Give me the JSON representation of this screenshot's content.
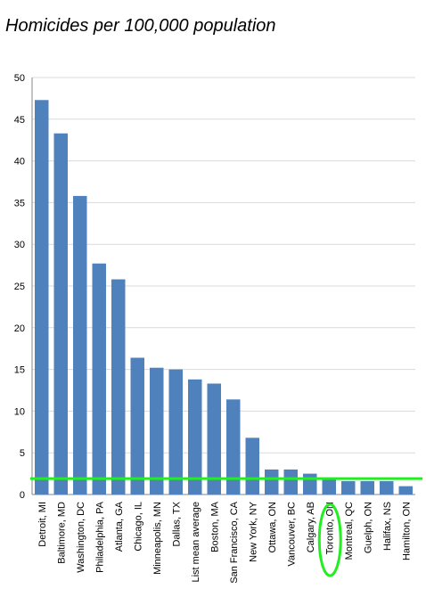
{
  "chart_data": {
    "type": "bar",
    "title": "Homicides per 100,000 population",
    "xlabel": "",
    "ylabel": "",
    "ylim": [
      0,
      50
    ],
    "yticks": [
      0,
      5,
      10,
      15,
      20,
      25,
      30,
      35,
      40,
      45,
      50
    ],
    "grid": true,
    "categories": [
      "Detroit, MI",
      "Baltimore, MD",
      "Washington, DC",
      "Philadelphia, PA",
      "Atlanta, GA",
      "Chicago, IL",
      "Minneapolis, MN",
      "Dallas, TX",
      "List mean average",
      "Boston, MA",
      "San Francisco, CA",
      "New York, NY",
      "Ottawa, ON",
      "Vancouver, BC",
      "Calgary, AB",
      "Toronto, ON",
      "Montreal, QC",
      "Guelph, ON",
      "Halifax, NS",
      "Hamilton, ON"
    ],
    "values": [
      47.3,
      43.3,
      35.8,
      27.7,
      25.8,
      16.4,
      15.2,
      15.0,
      13.8,
      13.3,
      11.4,
      6.8,
      3.0,
      3.0,
      2.5,
      1.8,
      1.6,
      1.6,
      1.6,
      1.0
    ],
    "bar_color": "#4f81bd",
    "annotations": {
      "reference_line": {
        "y": 1.8,
        "color": "#22ee22"
      },
      "highlight": {
        "category": "Toronto, ON",
        "shape": "ellipse",
        "color": "#22ee22"
      }
    }
  }
}
